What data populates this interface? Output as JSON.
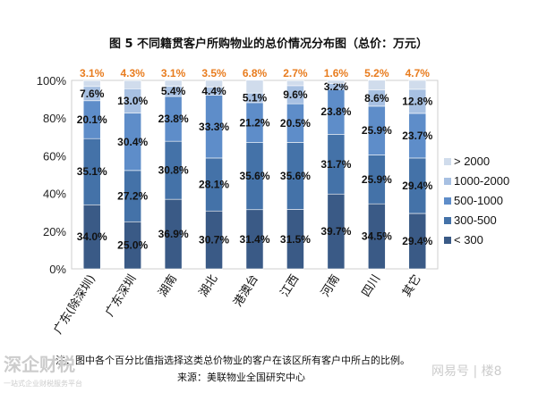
{
  "chart_data": {
    "type": "bar",
    "stacked": "percent",
    "title": "图 5 不同籍贯客户所购物业的总价情况分布图（总价：万元）",
    "categories": [
      "广东(除深圳)",
      "广东深圳",
      "湖南",
      "湖北",
      "港澳台",
      "江西",
      "河南",
      "四川",
      "其它"
    ],
    "series": [
      {
        "name": "< 300",
        "color": "#3a5a86",
        "values": [
          34.0,
          25.0,
          36.9,
          30.7,
          31.4,
          31.5,
          39.7,
          34.5,
          29.4
        ]
      },
      {
        "name": "300-500",
        "color": "#4472a8",
        "values": [
          35.1,
          27.2,
          30.8,
          28.1,
          35.6,
          35.6,
          31.7,
          25.9,
          29.4
        ]
      },
      {
        "name": "500-1000",
        "color": "#5e8dc9",
        "values": [
          20.1,
          30.4,
          23.8,
          33.3,
          21.2,
          20.5,
          23.8,
          25.9,
          23.7
        ]
      },
      {
        "name": "1000-2000",
        "color": "#a7c0e2",
        "values": [
          7.6,
          13.0,
          5.4,
          4.4,
          5.1,
          9.6,
          3.2,
          8.6,
          12.8
        ]
      },
      {
        "name": "> 2000",
        "color": "#d0dcec",
        "values": [
          3.1,
          4.3,
          3.1,
          3.5,
          6.8,
          2.7,
          1.6,
          5.2,
          4.7
        ]
      }
    ],
    "ylim": [
      0,
      100
    ],
    "yticks": [
      "0%",
      "20%",
      "40%",
      "60%",
      "80%",
      "100%"
    ],
    "grid": false,
    "legend_position": "right"
  },
  "footnote": "注：图中各个百分比值指选择这类总价物业的客户在该区所有客户中所占的比例。",
  "source": "来源：美联物业全国研究中心",
  "watermark": {
    "left": "深企财税",
    "left_sub": "一站式企业财税服务平台",
    "right": "网易号 | 楼8"
  }
}
